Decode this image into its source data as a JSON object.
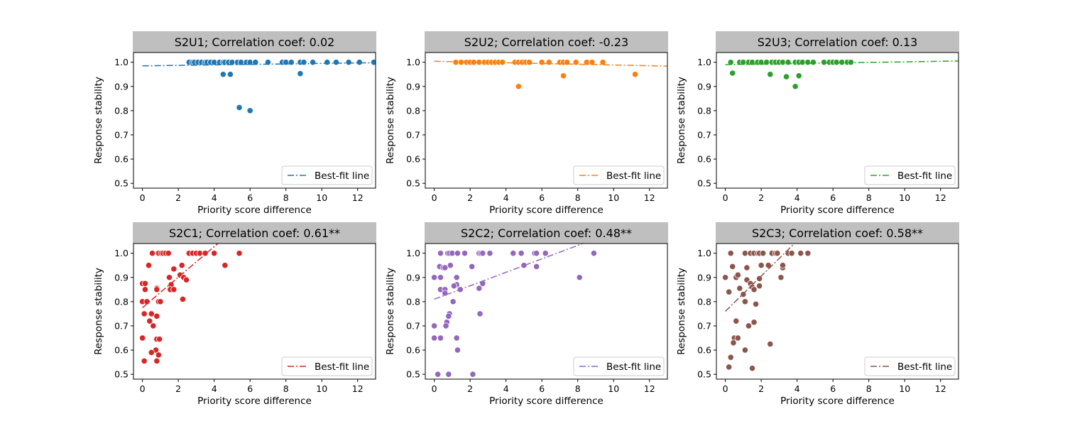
{
  "chart_data": [
    {
      "type": "scatter",
      "title": "S2U1; Correlation coef: 0.02",
      "xlabel": "Priority score difference",
      "ylabel": "Response stability",
      "xlim": [
        -0.5,
        13
      ],
      "ylim": [
        0.48,
        1.04
      ],
      "xticks": [
        0,
        2,
        4,
        6,
        8,
        10,
        12
      ],
      "yticks": [
        0.5,
        0.6,
        0.7,
        0.8,
        0.9,
        1.0
      ],
      "color": "#1f77b4",
      "legend": "Best-fit line",
      "fit": {
        "x0": 0,
        "y0": 0.985,
        "x1": 13,
        "y1": 0.998
      },
      "points": [
        [
          2.6,
          1.0
        ],
        [
          2.8,
          1.0
        ],
        [
          2.9,
          1.0
        ],
        [
          3.1,
          1.0
        ],
        [
          3.3,
          1.0
        ],
        [
          3.5,
          1.0
        ],
        [
          3.6,
          1.0
        ],
        [
          3.8,
          1.0
        ],
        [
          4.0,
          1.0
        ],
        [
          4.3,
          1.0
        ],
        [
          4.5,
          1.0
        ],
        [
          4.6,
          1.0
        ],
        [
          4.8,
          1.0
        ],
        [
          5.0,
          1.0
        ],
        [
          5.3,
          1.0
        ],
        [
          5.5,
          1.0
        ],
        [
          5.8,
          1.0
        ],
        [
          6.0,
          1.0
        ],
        [
          6.3,
          1.0
        ],
        [
          7.0,
          1.0
        ],
        [
          7.8,
          1.0
        ],
        [
          8.0,
          1.0
        ],
        [
          8.3,
          1.0
        ],
        [
          8.8,
          1.0
        ],
        [
          9.0,
          1.0
        ],
        [
          9.5,
          1.0
        ],
        [
          10.3,
          1.0
        ],
        [
          10.8,
          1.0
        ],
        [
          11.5,
          1.0
        ],
        [
          12.1,
          1.0
        ],
        [
          12.9,
          1.0
        ],
        [
          4.5,
          0.95
        ],
        [
          4.9,
          0.95
        ],
        [
          8.8,
          0.953
        ],
        [
          5.4,
          0.813
        ],
        [
          6.0,
          0.8
        ]
      ]
    },
    {
      "type": "scatter",
      "title": "S2U2; Correlation coef: -0.23",
      "xlabel": "Priority score difference",
      "ylabel": "Response stability",
      "xlim": [
        -0.5,
        13
      ],
      "ylim": [
        0.48,
        1.04
      ],
      "xticks": [
        0,
        2,
        4,
        6,
        8,
        10,
        12
      ],
      "yticks": [
        0.5,
        0.6,
        0.7,
        0.8,
        0.9,
        1.0
      ],
      "color": "#ff7f0e",
      "legend": "Best-fit line",
      "fit": {
        "x0": 0,
        "y0": 1.004,
        "x1": 13,
        "y1": 0.984
      },
      "points": [
        [
          1.2,
          1.0
        ],
        [
          1.5,
          1.0
        ],
        [
          1.8,
          1.0
        ],
        [
          2.0,
          1.0
        ],
        [
          2.2,
          1.0
        ],
        [
          2.5,
          1.0
        ],
        [
          2.8,
          1.0
        ],
        [
          3.0,
          1.0
        ],
        [
          3.2,
          1.0
        ],
        [
          3.4,
          1.0
        ],
        [
          3.6,
          1.0
        ],
        [
          3.8,
          1.0
        ],
        [
          4.5,
          1.0
        ],
        [
          4.7,
          1.0
        ],
        [
          4.9,
          1.0
        ],
        [
          5.1,
          1.0
        ],
        [
          5.3,
          1.0
        ],
        [
          6.0,
          1.0
        ],
        [
          6.4,
          1.0
        ],
        [
          7.0,
          1.0
        ],
        [
          7.2,
          1.0
        ],
        [
          7.4,
          1.0
        ],
        [
          7.9,
          1.0
        ],
        [
          8.5,
          1.0
        ],
        [
          8.8,
          1.0
        ],
        [
          9.4,
          1.0
        ],
        [
          4.7,
          0.9
        ],
        [
          7.2,
          0.944
        ],
        [
          11.2,
          0.95
        ]
      ]
    },
    {
      "type": "scatter",
      "title": "S2U3; Correlation coef: 0.13",
      "xlabel": "Priority score difference",
      "ylabel": "Response stability",
      "xlim": [
        -0.5,
        13
      ],
      "ylim": [
        0.48,
        1.04
      ],
      "xticks": [
        0,
        2,
        4,
        6,
        8,
        10,
        12
      ],
      "yticks": [
        0.5,
        0.6,
        0.7,
        0.8,
        0.9,
        1.0
      ],
      "color": "#2ca02c",
      "legend": "Best-fit line",
      "fit": {
        "x0": 0,
        "y0": 0.99,
        "x1": 13,
        "y1": 1.005
      },
      "points": [
        [
          0.3,
          1.0
        ],
        [
          0.8,
          1.0
        ],
        [
          1.0,
          1.0
        ],
        [
          1.3,
          1.0
        ],
        [
          1.5,
          1.0
        ],
        [
          1.8,
          1.0
        ],
        [
          2.0,
          1.0
        ],
        [
          2.3,
          1.0
        ],
        [
          2.6,
          1.0
        ],
        [
          2.8,
          1.0
        ],
        [
          3.0,
          1.0
        ],
        [
          3.2,
          1.0
        ],
        [
          3.5,
          1.0
        ],
        [
          3.9,
          1.0
        ],
        [
          4.1,
          1.0
        ],
        [
          4.3,
          1.0
        ],
        [
          4.6,
          1.0
        ],
        [
          4.9,
          1.0
        ],
        [
          5.5,
          1.0
        ],
        [
          5.8,
          1.0
        ],
        [
          6.0,
          1.0
        ],
        [
          6.2,
          1.0
        ],
        [
          6.5,
          1.0
        ],
        [
          6.8,
          1.0
        ],
        [
          7.0,
          1.0
        ],
        [
          0.4,
          0.955
        ],
        [
          2.5,
          0.95
        ],
        [
          3.4,
          0.94
        ],
        [
          4.1,
          0.944
        ],
        [
          3.9,
          0.9
        ]
      ]
    },
    {
      "type": "scatter",
      "title": "S2C1; Correlation coef: 0.61**",
      "xlabel": "Priority score difference",
      "ylabel": "Response stability",
      "xlim": [
        -0.5,
        13
      ],
      "ylim": [
        0.48,
        1.04
      ],
      "xticks": [
        0,
        2,
        4,
        6,
        8,
        10,
        12
      ],
      "yticks": [
        0.5,
        0.6,
        0.7,
        0.8,
        0.9,
        1.0
      ],
      "color": "#d62728",
      "legend": "Best-fit line",
      "fit": {
        "x0": 0,
        "y0": 0.775,
        "x1": 5.0,
        "y1": 1.09
      },
      "points": [
        [
          0.55,
          1.0
        ],
        [
          0.9,
          1.0
        ],
        [
          1.05,
          1.0
        ],
        [
          1.15,
          1.0
        ],
        [
          1.3,
          1.0
        ],
        [
          1.45,
          1.0
        ],
        [
          2.6,
          1.0
        ],
        [
          2.8,
          1.0
        ],
        [
          3.0,
          1.0
        ],
        [
          3.2,
          1.0
        ],
        [
          3.5,
          1.0
        ],
        [
          4.0,
          1.0
        ],
        [
          5.4,
          1.0
        ],
        [
          0.35,
          0.95
        ],
        [
          2.2,
          0.95
        ],
        [
          4.6,
          0.95
        ],
        [
          1.75,
          0.935
        ],
        [
          2.1,
          0.91
        ],
        [
          1.5,
          0.9
        ],
        [
          2.3,
          0.9
        ],
        [
          2.45,
          0.89
        ],
        [
          1.6,
          0.87
        ],
        [
          1.55,
          0.85
        ],
        [
          1.75,
          0.85
        ],
        [
          0.8,
          0.855
        ],
        [
          0.8,
          0.85
        ],
        [
          0.0,
          0.875
        ],
        [
          0.15,
          0.875
        ],
        [
          0.15,
          0.85
        ],
        [
          2.25,
          0.81
        ],
        [
          0.0,
          0.8
        ],
        [
          0.25,
          0.8
        ],
        [
          0.9,
          0.8
        ],
        [
          1.0,
          0.8
        ],
        [
          0.1,
          0.75
        ],
        [
          0.5,
          0.75
        ],
        [
          0.8,
          0.74
        ],
        [
          0.4,
          0.72
        ],
        [
          0.6,
          0.7
        ],
        [
          0.0,
          0.65
        ],
        [
          0.8,
          0.645
        ],
        [
          0.95,
          0.645
        ],
        [
          0.75,
          0.6
        ],
        [
          0.5,
          0.59
        ],
        [
          0.9,
          0.58
        ],
        [
          0.1,
          0.555
        ],
        [
          0.8,
          0.555
        ]
      ]
    },
    {
      "type": "scatter",
      "title": "S2C2; Correlation coef: 0.48**",
      "xlabel": "Priority score difference",
      "ylabel": "Response stability",
      "xlim": [
        -0.5,
        13
      ],
      "ylim": [
        0.48,
        1.04
      ],
      "xticks": [
        0,
        2,
        4,
        6,
        8,
        10,
        12
      ],
      "yticks": [
        0.5,
        0.6,
        0.7,
        0.8,
        0.9,
        1.0
      ],
      "color": "#9467bd",
      "legend": "Best-fit line",
      "fit": {
        "x0": 0,
        "y0": 0.81,
        "x1": 9.0,
        "y1": 1.06
      },
      "points": [
        [
          0.35,
          1.0
        ],
        [
          0.75,
          1.0
        ],
        [
          0.85,
          1.0
        ],
        [
          1.0,
          1.0
        ],
        [
          1.3,
          1.0
        ],
        [
          1.7,
          1.0
        ],
        [
          2.5,
          1.0
        ],
        [
          2.6,
          1.0
        ],
        [
          2.7,
          1.0
        ],
        [
          3.1,
          1.0
        ],
        [
          4.4,
          1.0
        ],
        [
          4.85,
          1.0
        ],
        [
          5.6,
          1.0
        ],
        [
          5.7,
          1.0
        ],
        [
          6.2,
          1.0
        ],
        [
          8.9,
          1.0
        ],
        [
          5.0,
          0.95
        ],
        [
          5.7,
          0.945
        ],
        [
          0.9,
          0.95
        ],
        [
          0.3,
          0.945
        ],
        [
          0.5,
          0.94
        ],
        [
          0.6,
          0.94
        ],
        [
          2.1,
          0.945
        ],
        [
          0.0,
          0.9
        ],
        [
          0.35,
          0.9
        ],
        [
          1.25,
          0.9
        ],
        [
          8.1,
          0.9
        ],
        [
          1.25,
          0.87
        ],
        [
          1.1,
          0.865
        ],
        [
          2.7,
          0.875
        ],
        [
          0.35,
          0.85
        ],
        [
          0.6,
          0.85
        ],
        [
          1.45,
          0.85
        ],
        [
          2.5,
          0.855
        ],
        [
          0.6,
          0.835
        ],
        [
          1.05,
          0.8
        ],
        [
          0.85,
          0.75
        ],
        [
          0.8,
          0.74
        ],
        [
          2.55,
          0.75
        ],
        [
          0.7,
          0.715
        ],
        [
          0.65,
          0.7
        ],
        [
          0.0,
          0.7
        ],
        [
          0.0,
          0.65
        ],
        [
          0.35,
          0.65
        ],
        [
          1.25,
          0.65
        ],
        [
          1.3,
          0.6
        ],
        [
          0.2,
          0.5
        ],
        [
          0.8,
          0.5
        ],
        [
          2.15,
          0.5
        ]
      ]
    },
    {
      "type": "scatter",
      "title": "S2C3; Correlation coef: 0.58**",
      "xlabel": "Priority score difference",
      "ylabel": "Response stability",
      "xlim": [
        -0.5,
        13
      ],
      "ylim": [
        0.48,
        1.04
      ],
      "xticks": [
        0,
        2,
        4,
        6,
        8,
        10,
        12
      ],
      "yticks": [
        0.5,
        0.6,
        0.7,
        0.8,
        0.9,
        1.0
      ],
      "color": "#8c564b",
      "legend": "Best-fit line",
      "fit": {
        "x0": 0,
        "y0": 0.76,
        "x1": 4.4,
        "y1": 1.08
      },
      "points": [
        [
          0.3,
          1.0
        ],
        [
          1.1,
          1.0
        ],
        [
          1.4,
          1.0
        ],
        [
          1.6,
          1.0
        ],
        [
          1.8,
          1.0
        ],
        [
          1.9,
          1.0
        ],
        [
          2.1,
          1.0
        ],
        [
          2.6,
          1.0
        ],
        [
          2.8,
          1.0
        ],
        [
          2.9,
          1.0
        ],
        [
          3.5,
          1.0
        ],
        [
          3.7,
          1.0
        ],
        [
          4.2,
          1.0
        ],
        [
          4.6,
          1.0
        ],
        [
          0.4,
          0.945
        ],
        [
          1.2,
          0.94
        ],
        [
          2.0,
          0.95
        ],
        [
          2.4,
          0.95
        ],
        [
          3.2,
          0.94
        ],
        [
          3.2,
          0.95
        ],
        [
          0.0,
          0.9
        ],
        [
          0.6,
          0.9
        ],
        [
          0.7,
          0.91
        ],
        [
          1.2,
          0.89
        ],
        [
          1.9,
          0.895
        ],
        [
          3.1,
          0.9
        ],
        [
          1.4,
          0.875
        ],
        [
          1.5,
          0.86
        ],
        [
          1.6,
          0.85
        ],
        [
          1.9,
          0.865
        ],
        [
          0.8,
          0.855
        ],
        [
          1.0,
          0.83
        ],
        [
          0.2,
          0.84
        ],
        [
          1.1,
          0.8
        ],
        [
          1.7,
          0.79
        ],
        [
          0.6,
          0.72
        ],
        [
          1.6,
          0.715
        ],
        [
          1.3,
          0.7
        ],
        [
          0.5,
          0.65
        ],
        [
          0.7,
          0.65
        ],
        [
          0.45,
          0.63
        ],
        [
          2.5,
          0.625
        ],
        [
          1.1,
          0.6
        ],
        [
          0.3,
          0.57
        ],
        [
          0.2,
          0.53
        ],
        [
          1.5,
          0.525
        ]
      ]
    }
  ]
}
